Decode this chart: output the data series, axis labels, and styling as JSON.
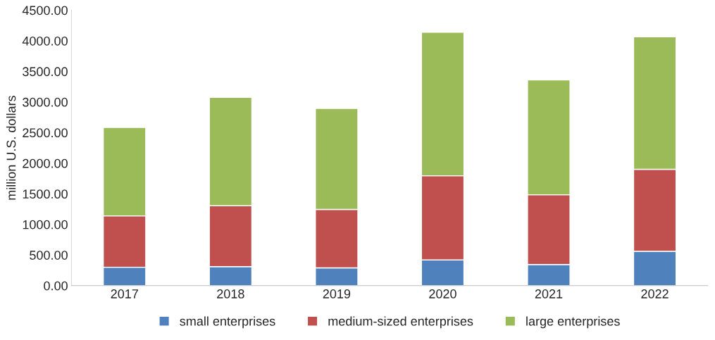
{
  "chart_data": {
    "type": "bar",
    "stacked": true,
    "ylabel": "million U.S. dollars",
    "categories": [
      "2017",
      "2018",
      "2019",
      "2020",
      "2021",
      "2022"
    ],
    "series": [
      {
        "name": "small enterprises",
        "color": "#4f81bd",
        "values": [
          300,
          310,
          290,
          420,
          345,
          560
        ]
      },
      {
        "name": "medium-sized enterprises",
        "color": "#c0504d",
        "values": [
          840,
          995,
          955,
          1375,
          1140,
          1340
        ]
      },
      {
        "name": "large enterprises",
        "color": "#9bbb59",
        "values": [
          1445,
          1770,
          1650,
          2345,
          1875,
          2165
        ]
      }
    ],
    "ylim": [
      0,
      4500
    ],
    "yticks": [
      {
        "value": 0,
        "label": "0.00"
      },
      {
        "value": 500,
        "label": "500.00"
      },
      {
        "value": 1000,
        "label": "1000.00"
      },
      {
        "value": 1500,
        "label": "1500.00"
      },
      {
        "value": 2000,
        "label": "2000.00"
      },
      {
        "value": 2500,
        "label": "2500.00"
      },
      {
        "value": 3000,
        "label": "3000.00"
      },
      {
        "value": 3500,
        "label": "3500.00"
      },
      {
        "value": 4000,
        "label": "4000.00"
      },
      {
        "value": 4500,
        "label": "4500.00"
      }
    ],
    "grid": false,
    "legend": "bottom"
  }
}
